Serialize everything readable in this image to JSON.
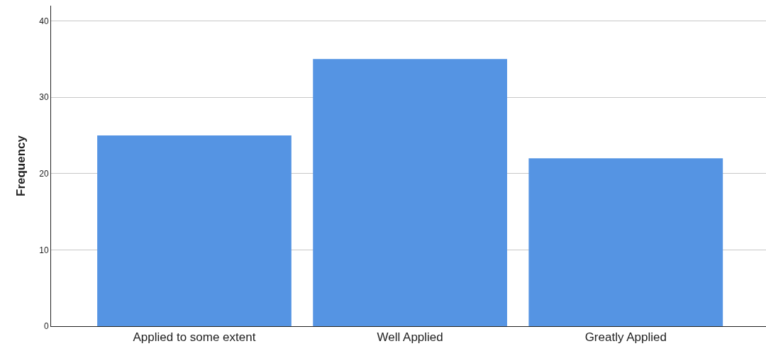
{
  "chart_data": {
    "type": "bar",
    "ylabel": "Frequency",
    "categories": [
      "Applied to some extent",
      "Well Applied",
      "Greatly Applied"
    ],
    "values": [
      25,
      35,
      22
    ],
    "color": "#5594e3",
    "ylim": [
      0,
      42
    ],
    "yticks": [
      0,
      10,
      20,
      30,
      40
    ],
    "grid": "y"
  }
}
